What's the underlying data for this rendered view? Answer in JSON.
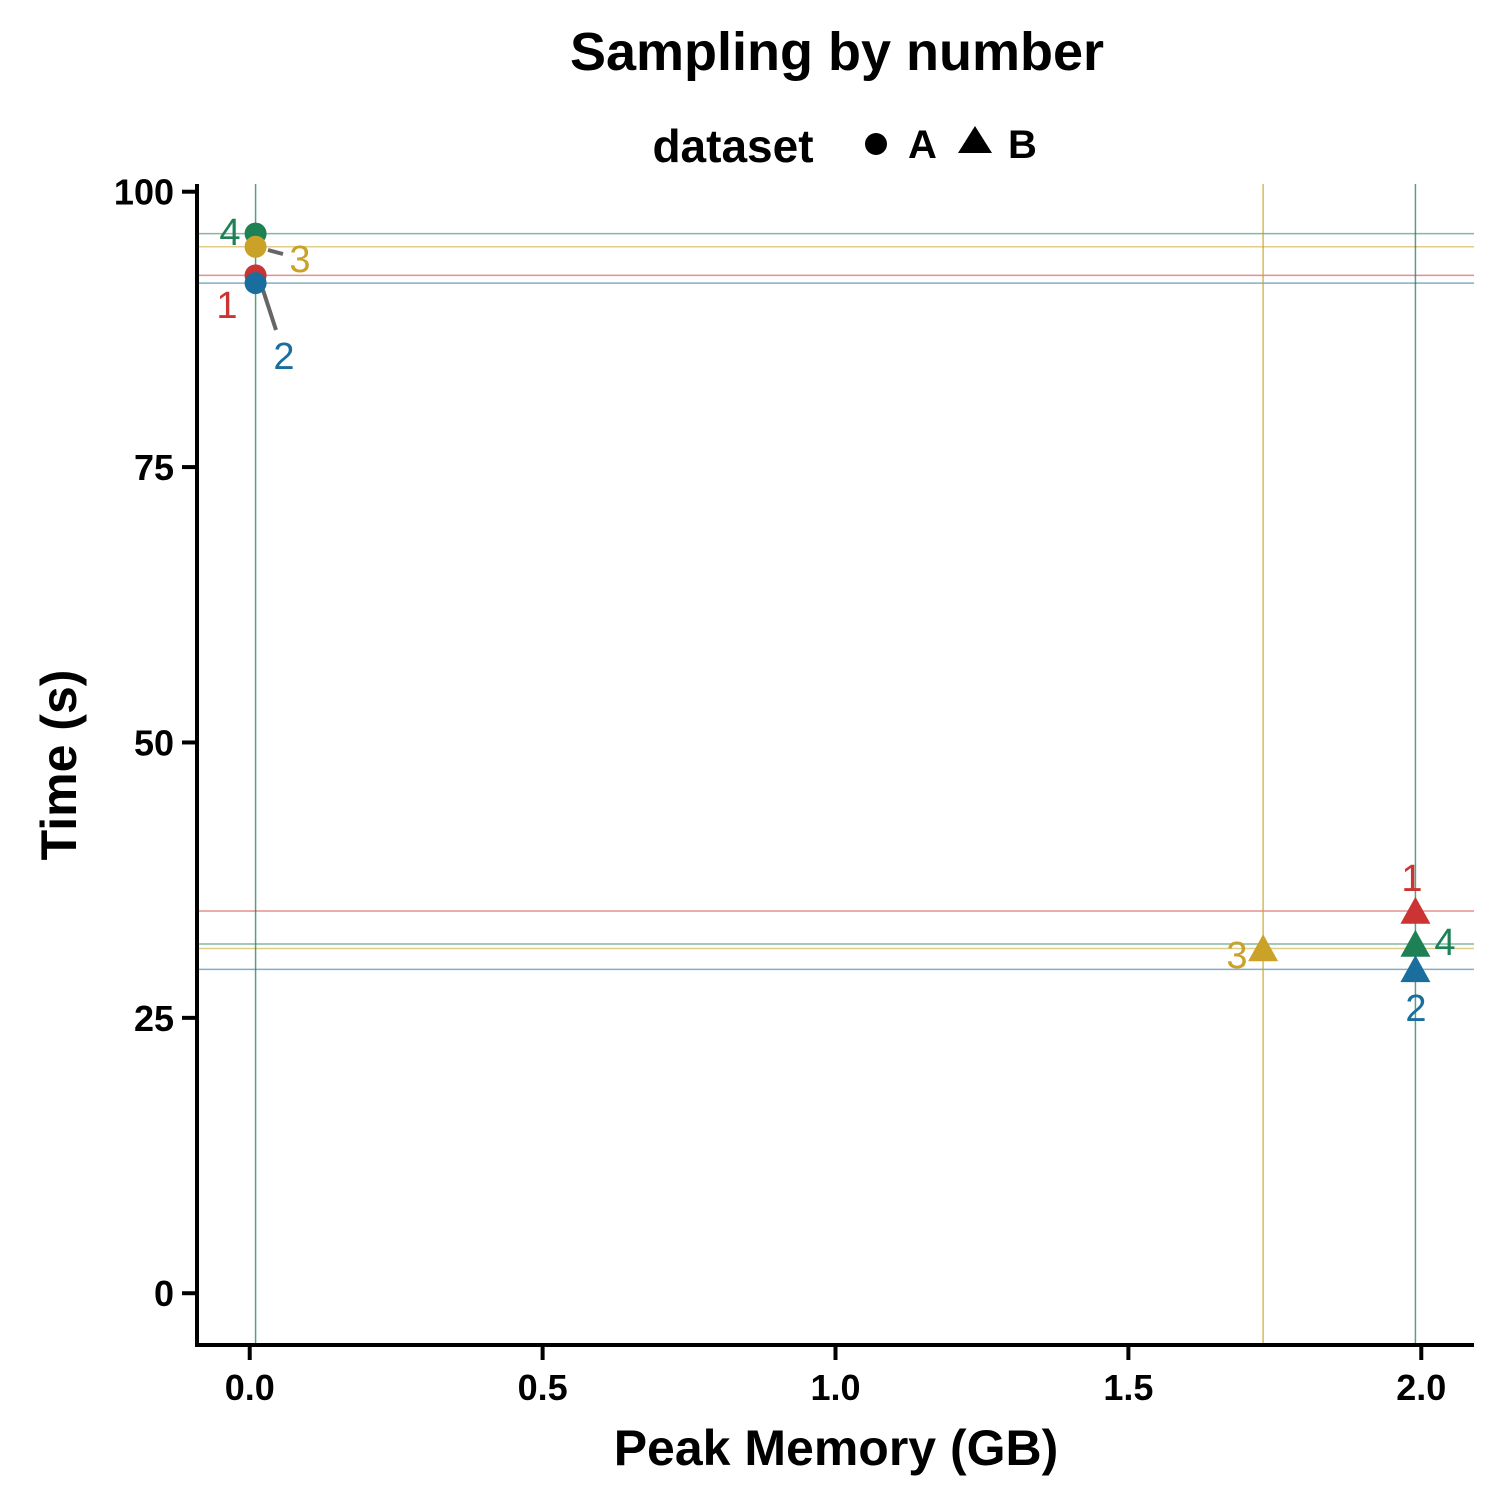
{
  "chart_data": {
    "type": "scatter",
    "title": "Sampling by number",
    "xlabel": "Peak Memory (GB)",
    "ylabel": "Time (s)",
    "xlim": [
      -0.09,
      2.09
    ],
    "ylim": [
      -4.7,
      100.7
    ],
    "x_ticks": [
      0.0,
      0.5,
      1.0,
      1.5,
      2.0
    ],
    "x_tick_labels": [
      "0.0",
      "0.5",
      "1.0",
      "1.5",
      "2.0"
    ],
    "y_ticks": [
      0,
      25,
      50,
      75,
      100
    ],
    "y_tick_labels": [
      "0",
      "25",
      "50",
      "75",
      "100"
    ],
    "grid": false,
    "legend": {
      "title": "dataset",
      "placement": "top",
      "entries": [
        {
          "label": "A",
          "shape": "circle"
        },
        {
          "label": "B",
          "shape": "triangle"
        }
      ]
    },
    "colors": {
      "1": "#cc3333",
      "2": "#1a6e9e",
      "3": "#c9a227",
      "4": "#1e8055"
    },
    "label_line_color": "#666666",
    "points": [
      {
        "dataset": "A",
        "label": "1",
        "x": 0.01,
        "y": 92.4
      },
      {
        "dataset": "A",
        "label": "2",
        "x": 0.01,
        "y": 91.7
      },
      {
        "dataset": "A",
        "label": "3",
        "x": 0.01,
        "y": 95.0
      },
      {
        "dataset": "A",
        "label": "4",
        "x": 0.01,
        "y": 96.2
      },
      {
        "dataset": "B",
        "label": "1",
        "x": 1.99,
        "y": 34.7
      },
      {
        "dataset": "B",
        "label": "2",
        "x": 1.99,
        "y": 29.4
      },
      {
        "dataset": "B",
        "label": "3",
        "x": 1.73,
        "y": 31.3
      },
      {
        "dataset": "B",
        "label": "4",
        "x": 1.99,
        "y": 31.7
      }
    ],
    "reference_lines": {
      "vertical": [
        {
          "x": 0.01,
          "color_key": "4"
        },
        {
          "x": 1.73,
          "color_key": "3"
        },
        {
          "x": 1.99,
          "color_key": "4"
        }
      ],
      "horizontal": [
        {
          "y": 96.2,
          "color_key": "4"
        },
        {
          "y": 95.0,
          "color_key": "3"
        },
        {
          "y": 92.4,
          "color_key": "1"
        },
        {
          "y": 91.7,
          "color_key": "2"
        },
        {
          "y": 34.7,
          "color_key": "1"
        },
        {
          "y": 31.7,
          "color_key": "4"
        },
        {
          "y": 31.3,
          "color_key": "3"
        },
        {
          "y": 29.4,
          "color_key": "2"
        }
      ]
    }
  }
}
